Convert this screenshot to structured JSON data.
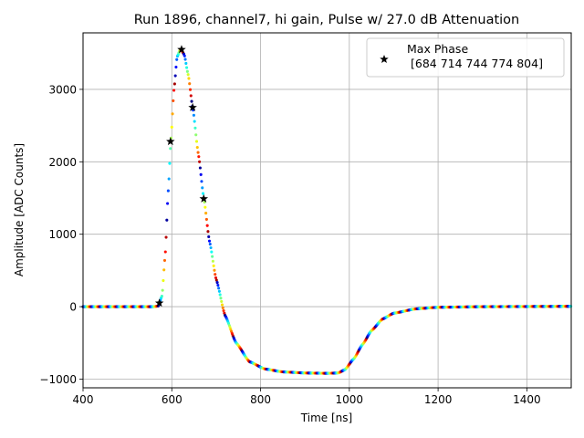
{
  "chart_data": {
    "type": "scatter",
    "title": "Run 1896, channel7, hi gain, Pulse w/ 27.0 dB Attenuation",
    "xlabel": "Time [ns]",
    "ylabel": "Amplitude [ADC Counts]",
    "xlim": [
      400,
      1500
    ],
    "ylim": [
      -1120,
      3780
    ],
    "xticks": [
      400,
      600,
      800,
      1000,
      1200,
      1400
    ],
    "yticks": [
      -1000,
      0,
      1000,
      2000,
      3000
    ],
    "xtick_labels": [
      "400",
      "600",
      "800",
      "1000",
      "1200",
      "1400"
    ],
    "ytick_labels": [
      "−1000",
      "0",
      "1000",
      "2000",
      "3000"
    ],
    "grid": true,
    "legend": {
      "placement": "top-right",
      "label_line1": "Max Phase",
      "label_line2": "[684 714 744 774 804]",
      "marker": "black star"
    },
    "colormap": "jet",
    "pulse_curve": {
      "description_points": [
        [
          400,
          0
        ],
        [
          560,
          0
        ],
        [
          570,
          10
        ],
        [
          578,
          150
        ],
        [
          585,
          700
        ],
        [
          592,
          1600
        ],
        [
          598,
          2300
        ],
        [
          605,
          3000
        ],
        [
          612,
          3450
        ],
        [
          620,
          3560
        ],
        [
          628,
          3480
        ],
        [
          637,
          3200
        ],
        [
          647,
          2750
        ],
        [
          660,
          2100
        ],
        [
          672,
          1500
        ],
        [
          685,
          900
        ],
        [
          700,
          380
        ],
        [
          720,
          -120
        ],
        [
          745,
          -500
        ],
        [
          775,
          -760
        ],
        [
          810,
          -860
        ],
        [
          850,
          -900
        ],
        [
          900,
          -915
        ],
        [
          950,
          -920
        ],
        [
          975,
          -915
        ],
        [
          990,
          -870
        ],
        [
          1010,
          -720
        ],
        [
          1030,
          -520
        ],
        [
          1050,
          -330
        ],
        [
          1075,
          -170
        ],
        [
          1100,
          -90
        ],
        [
          1150,
          -30
        ],
        [
          1200,
          -8
        ],
        [
          1300,
          0
        ],
        [
          1500,
          5
        ]
      ]
    },
    "max_phase_markers": {
      "x": [
        572,
        597,
        622,
        647,
        672
      ],
      "y": [
        50,
        2280,
        3550,
        2750,
        1490
      ]
    }
  }
}
